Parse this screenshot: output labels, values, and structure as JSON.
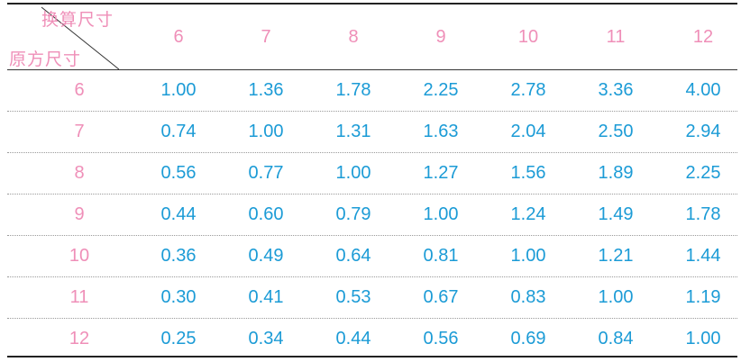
{
  "table": {
    "corner_top_label": "换算尺寸",
    "corner_bottom_label": "原方尺寸",
    "column_headers": [
      "6",
      "7",
      "8",
      "9",
      "10",
      "11",
      "12"
    ],
    "rows": [
      {
        "label": "6",
        "values": [
          "1.00",
          "1.36",
          "1.78",
          "2.25",
          "2.78",
          "3.36",
          "4.00"
        ]
      },
      {
        "label": "7",
        "values": [
          "0.74",
          "1.00",
          "1.31",
          "1.63",
          "2.04",
          "2.50",
          "2.94"
        ]
      },
      {
        "label": "8",
        "values": [
          "0.56",
          "0.77",
          "1.00",
          "1.27",
          "1.56",
          "1.89",
          "2.25"
        ]
      },
      {
        "label": "9",
        "values": [
          "0.44",
          "0.60",
          "0.79",
          "1.00",
          "1.24",
          "1.49",
          "1.78"
        ]
      },
      {
        "label": "10",
        "values": [
          "0.36",
          "0.49",
          "0.64",
          "0.81",
          "1.00",
          "1.21",
          "1.44"
        ]
      },
      {
        "label": "11",
        "values": [
          "0.30",
          "0.41",
          "0.53",
          "0.67",
          "0.83",
          "1.00",
          "1.19"
        ]
      },
      {
        "label": "12",
        "values": [
          "0.25",
          "0.34",
          "0.44",
          "0.56",
          "0.69",
          "0.84",
          "1.00"
        ]
      }
    ],
    "colors": {
      "header_pink": "#ef8fb8",
      "value_blue": "#1b9bd6",
      "rule_dark": "#222222"
    }
  }
}
